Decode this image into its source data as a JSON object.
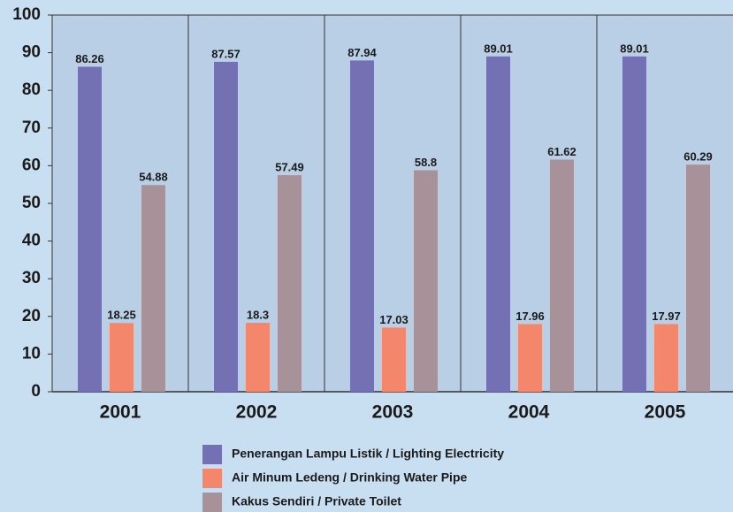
{
  "chart_data": {
    "type": "bar",
    "categories": [
      "2001",
      "2002",
      "2003",
      "2004",
      "2005"
    ],
    "series": [
      {
        "name": "Penerangan Lampu Listik / Lighting Electricity",
        "color": "#7470b4",
        "values": [
          86.26,
          87.57,
          87.94,
          89.01,
          89.01
        ]
      },
      {
        "name": "Air Minum Ledeng / Drinking Water Pipe",
        "color": "#f4876b",
        "values": [
          18.25,
          18.3,
          17.03,
          17.96,
          17.97
        ]
      },
      {
        "name": "Kakus Sendiri / Private Toilet",
        "color": "#a89299",
        "values": [
          54.88,
          57.49,
          58.8,
          61.62,
          60.29
        ]
      }
    ],
    "ylim": [
      0,
      100
    ],
    "yticks": [
      0,
      10,
      20,
      30,
      40,
      50,
      60,
      70,
      80,
      90,
      100
    ]
  }
}
